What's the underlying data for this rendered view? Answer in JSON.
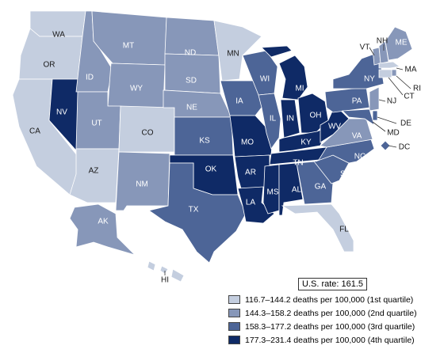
{
  "us_rate": "U.S. rate: 161.5",
  "colors": {
    "q1": "#c4cedf",
    "q2": "#8797b9",
    "q3": "#4d6597",
    "q4": "#0f2a66"
  },
  "legend": [
    {
      "label": "116.7–144.2 deaths per 100,000 (1st quartile)",
      "q": "q1"
    },
    {
      "label": "144.3–158.2 deaths per 100,000 (2nd quartile)",
      "q": "q2"
    },
    {
      "label": "158.3–177.2 deaths per 100,000 (3rd quartile)",
      "q": "q3"
    },
    {
      "label": "177.3–231.4 deaths per 100,000 (4th quartile)",
      "q": "q4"
    }
  ],
  "states": [
    {
      "abbr": "WA",
      "q": "q1"
    },
    {
      "abbr": "OR",
      "q": "q1"
    },
    {
      "abbr": "CA",
      "q": "q1"
    },
    {
      "abbr": "NV",
      "q": "q4"
    },
    {
      "abbr": "ID",
      "q": "q2"
    },
    {
      "abbr": "MT",
      "q": "q2"
    },
    {
      "abbr": "WY",
      "q": "q2"
    },
    {
      "abbr": "UT",
      "q": "q2"
    },
    {
      "abbr": "AZ",
      "q": "q1"
    },
    {
      "abbr": "CO",
      "q": "q1"
    },
    {
      "abbr": "NM",
      "q": "q2"
    },
    {
      "abbr": "ND",
      "q": "q2"
    },
    {
      "abbr": "SD",
      "q": "q2"
    },
    {
      "abbr": "NE",
      "q": "q2"
    },
    {
      "abbr": "KS",
      "q": "q3"
    },
    {
      "abbr": "OK",
      "q": "q4"
    },
    {
      "abbr": "TX",
      "q": "q3"
    },
    {
      "abbr": "MN",
      "q": "q1"
    },
    {
      "abbr": "IA",
      "q": "q3"
    },
    {
      "abbr": "MO",
      "q": "q4"
    },
    {
      "abbr": "AR",
      "q": "q4"
    },
    {
      "abbr": "LA",
      "q": "q4"
    },
    {
      "abbr": "WI",
      "q": "q3"
    },
    {
      "abbr": "IL",
      "q": "q3"
    },
    {
      "abbr": "MI",
      "q": "q4"
    },
    {
      "abbr": "IN",
      "q": "q4"
    },
    {
      "abbr": "OH",
      "q": "q4"
    },
    {
      "abbr": "KY",
      "q": "q4"
    },
    {
      "abbr": "TN",
      "q": "q4"
    },
    {
      "abbr": "MS",
      "q": "q4"
    },
    {
      "abbr": "AL",
      "q": "q4"
    },
    {
      "abbr": "GA",
      "q": "q3"
    },
    {
      "abbr": "FL",
      "q": "q1"
    },
    {
      "abbr": "SC",
      "q": "q3"
    },
    {
      "abbr": "NC",
      "q": "q3"
    },
    {
      "abbr": "VA",
      "q": "q2"
    },
    {
      "abbr": "WV",
      "q": "q4"
    },
    {
      "abbr": "PA",
      "q": "q3"
    },
    {
      "abbr": "NY",
      "q": "q3"
    },
    {
      "abbr": "VT",
      "q": "q2"
    },
    {
      "abbr": "NH",
      "q": "q2"
    },
    {
      "abbr": "ME",
      "q": "q2"
    },
    {
      "abbr": "MA",
      "q": "q1"
    },
    {
      "abbr": "RI",
      "q": "q2"
    },
    {
      "abbr": "CT",
      "q": "q1"
    },
    {
      "abbr": "NJ",
      "q": "q2"
    },
    {
      "abbr": "DE",
      "q": "q3"
    },
    {
      "abbr": "MD",
      "q": "q3"
    },
    {
      "abbr": "DC",
      "q": "q3"
    },
    {
      "abbr": "AK",
      "q": "q2"
    },
    {
      "abbr": "HI",
      "q": "q1"
    }
  ]
}
